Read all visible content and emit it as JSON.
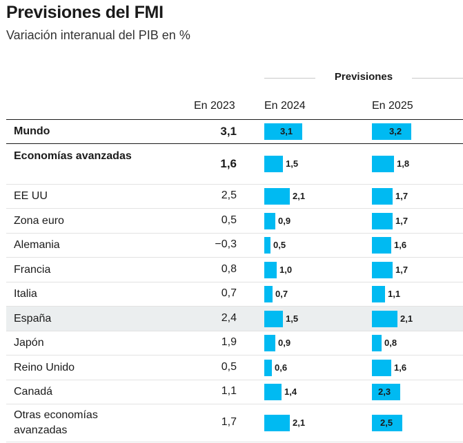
{
  "title": "Previsiones del FMI",
  "subtitle": "Variación interanual del PIB en %",
  "group_header": "Previsiones",
  "columns": [
    "",
    "En 2023",
    "En 2024",
    "En 2025"
  ],
  "colors": {
    "bar": "#00baf2",
    "highlight_row": "#ebeeef"
  },
  "chart_data": {
    "type": "table",
    "title": "Previsiones del FMI",
    "subtitle": "Variación interanual del PIB en %",
    "columns": [
      "En 2023",
      "En 2024",
      "En 2025"
    ],
    "rows": [
      {
        "name": "Mundo",
        "v2023": "3,1",
        "v2024": 3.1,
        "v2025": 3.2,
        "bold": true
      },
      {
        "name": "Economías avanzadas",
        "v2023": "1,6",
        "v2024": 1.5,
        "v2025": 1.8,
        "bold": true
      },
      {
        "name": "EE UU",
        "v2023": "2,5",
        "v2024": 2.1,
        "v2025": 1.7
      },
      {
        "name": "Zona euro",
        "v2023": "0,5",
        "v2024": 0.9,
        "v2025": 1.7
      },
      {
        "name": "Alemania",
        "v2023": "−0,3",
        "v2024": 0.5,
        "v2025": 1.6
      },
      {
        "name": "Francia",
        "v2023": "0,8",
        "v2024": 1.0,
        "v2025": 1.7
      },
      {
        "name": "Italia",
        "v2023": "0,7",
        "v2024": 0.7,
        "v2025": 1.1
      },
      {
        "name": "España",
        "v2023": "2,4",
        "v2024": 1.5,
        "v2025": 2.1,
        "highlight": true
      },
      {
        "name": "Japón",
        "v2023": "1,9",
        "v2024": 0.9,
        "v2025": 0.8
      },
      {
        "name": "Reino Unido",
        "v2023": "0,5",
        "v2024": 0.6,
        "v2025": 1.6
      },
      {
        "name": "Canadá",
        "v2023": "1,1",
        "v2024": 1.4,
        "v2025": 2.3
      },
      {
        "name": "Otras economías avanzadas",
        "v2023": "1,7",
        "v2024": 2.1,
        "v2025": 2.5
      }
    ]
  }
}
